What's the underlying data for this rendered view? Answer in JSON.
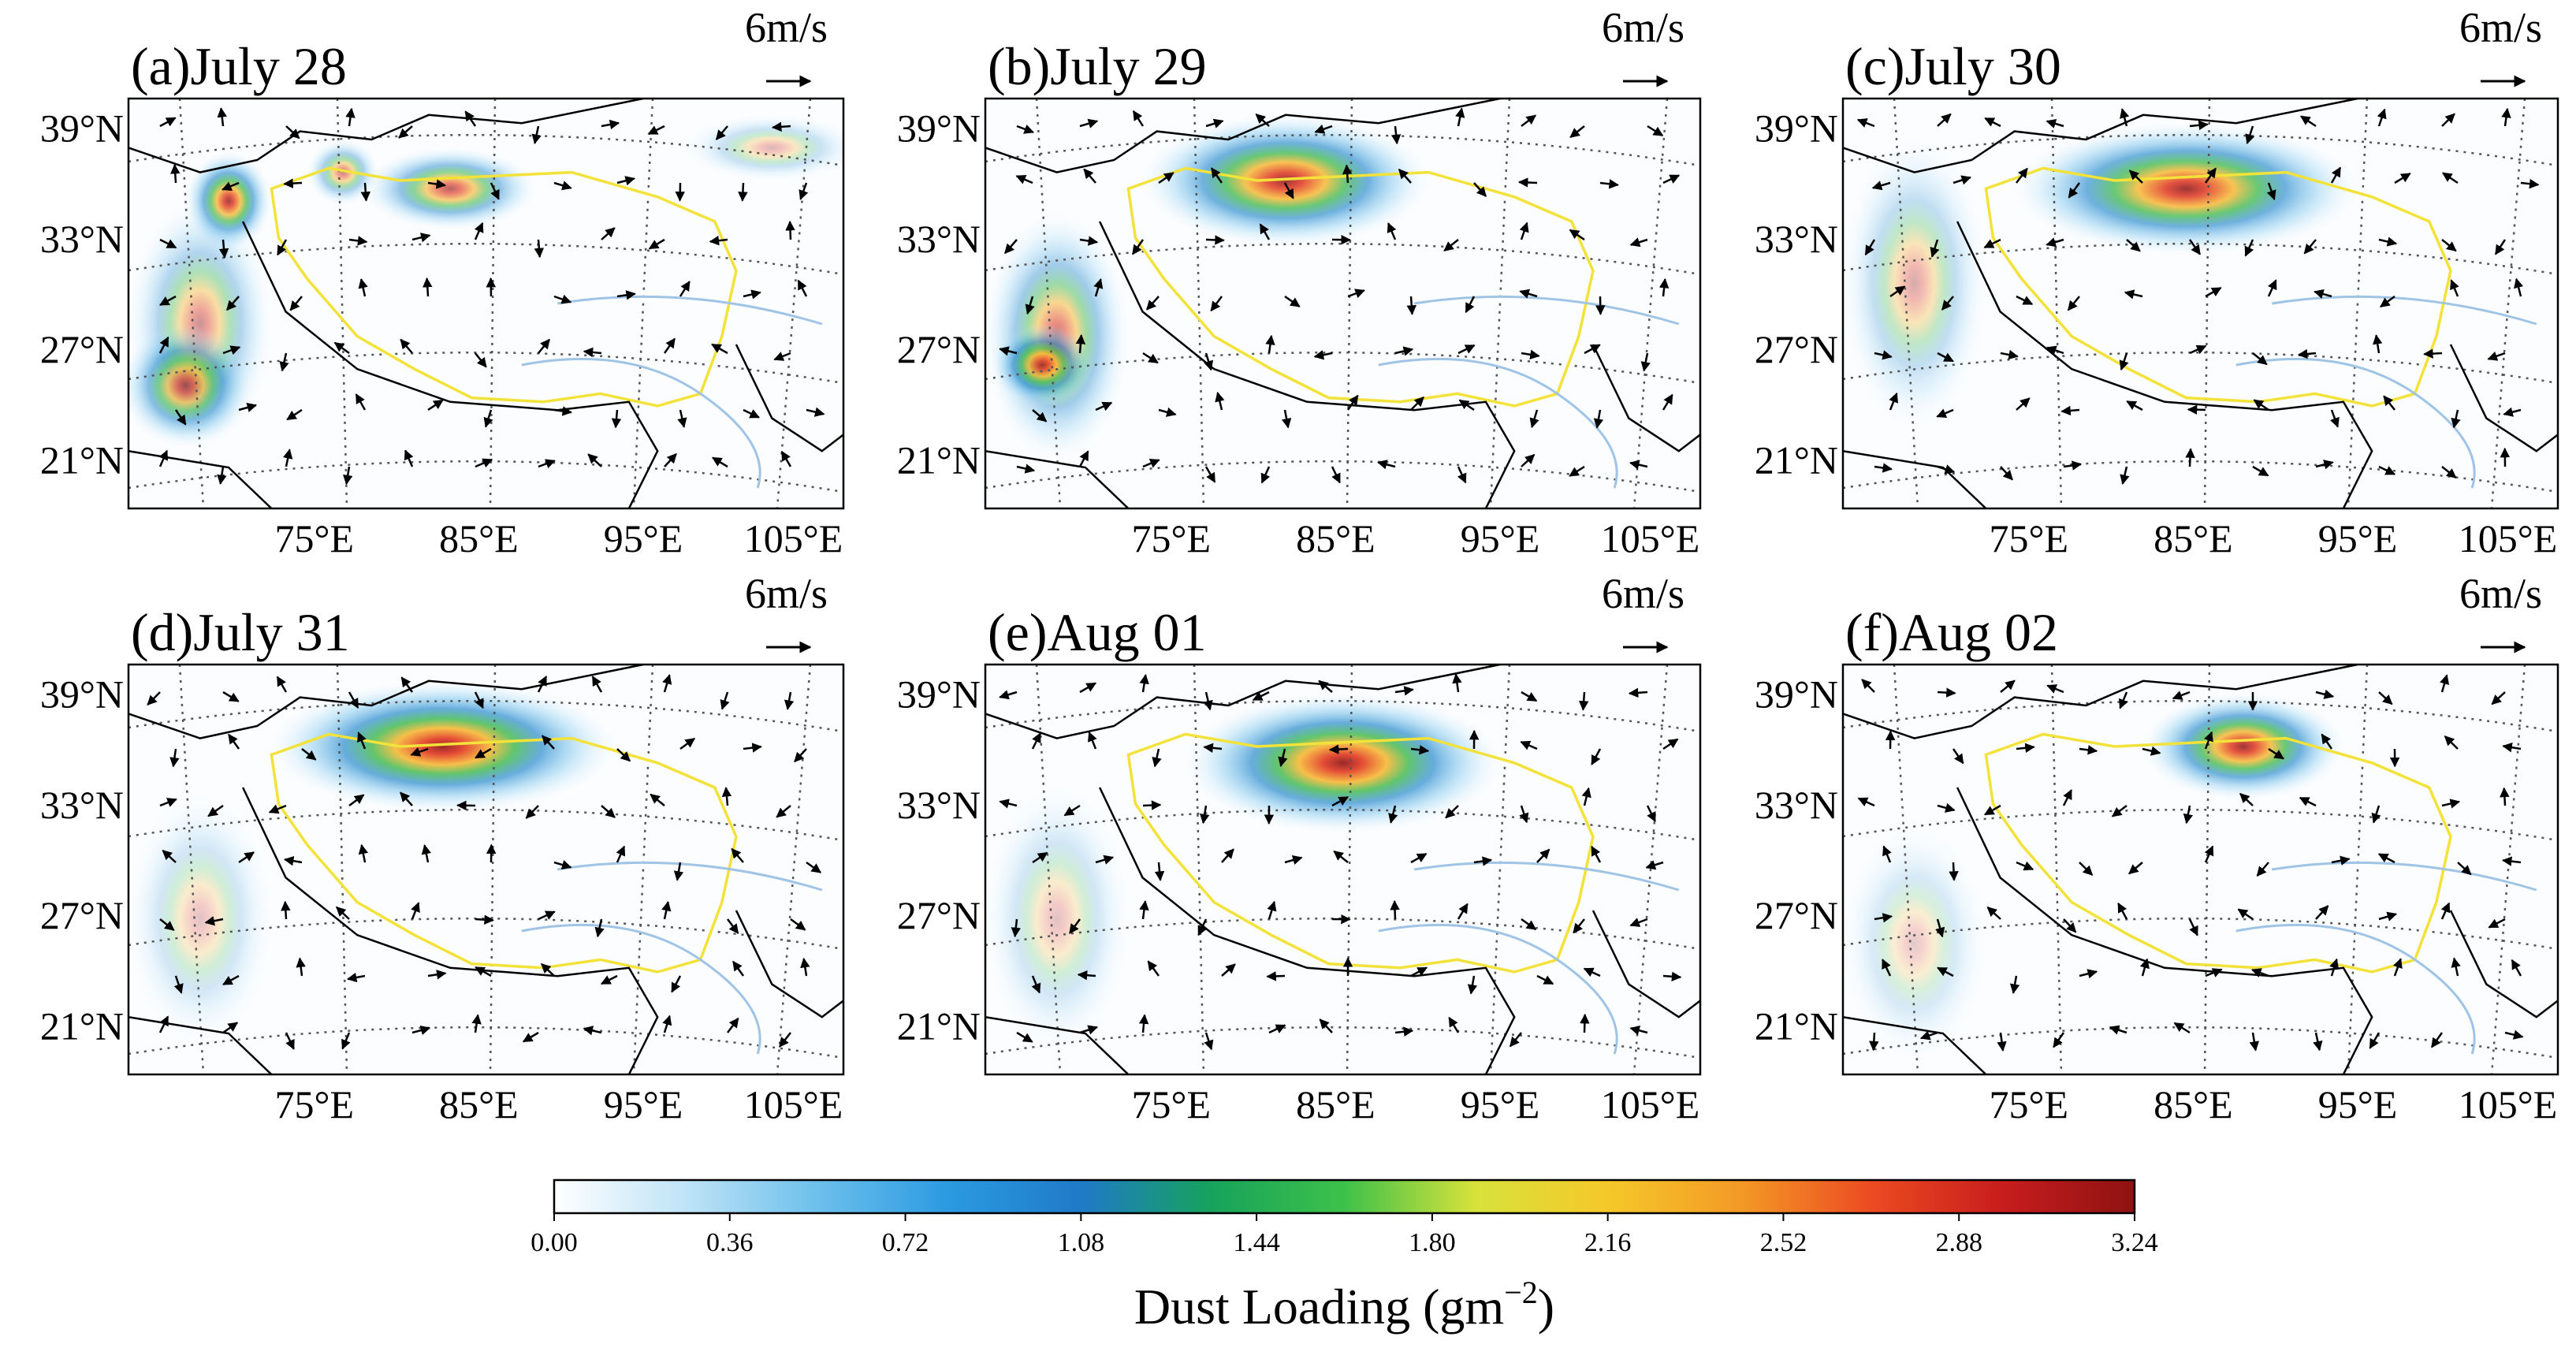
{
  "figure": {
    "panels": [
      {
        "label": "(a)July 28"
      },
      {
        "label": "(b)July 29"
      },
      {
        "label": "(c)July 30"
      },
      {
        "label": "(d)July 31"
      },
      {
        "label": "(e)Aug 01"
      },
      {
        "label": "(f)Aug 02"
      }
    ],
    "wind_scale_label": "6m/s",
    "lat_labels": [
      "39°N",
      "33°N",
      "27°N",
      "21°N"
    ],
    "lon_labels": [
      "75°E",
      "85°E",
      "95°E",
      "105°E"
    ],
    "colorbar": {
      "ticks": [
        "0.00",
        "0.36",
        "0.72",
        "1.08",
        "1.44",
        "1.80",
        "2.16",
        "2.52",
        "2.88",
        "3.24"
      ],
      "title_text": "Dust Loading (gm",
      "title_exponent": "−2",
      "title_close": ")"
    },
    "colors": {
      "boundary": "#f2e23a",
      "rivers": "#9fc4e6",
      "stops": [
        "#ffffff",
        "#bfe3f7",
        "#6cc0ec",
        "#2b9ae0",
        "#1f7ac8",
        "#17a35b",
        "#3ec14a",
        "#d8e23b",
        "#f5c82a",
        "#f39a25",
        "#ec4b22",
        "#c81d1d",
        "#8e1212"
      ]
    }
  }
}
